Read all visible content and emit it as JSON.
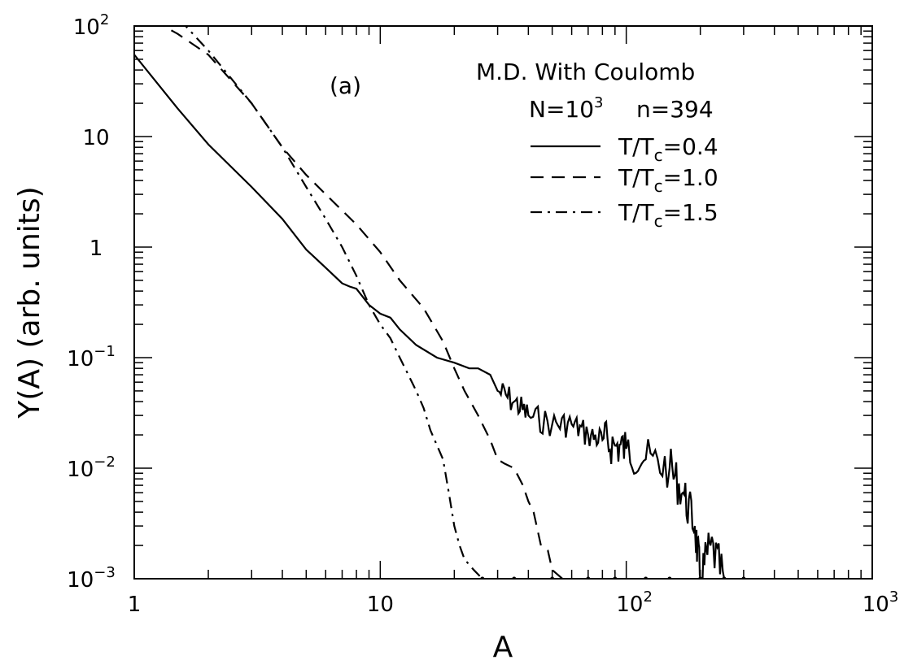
{
  "chart_data": {
    "type": "line",
    "panel_label": "(a)",
    "xlabel": "A",
    "ylabel": "Y(A) (arb. units)",
    "xscale": "log",
    "yscale": "log",
    "xlim": [
      1,
      1000
    ],
    "ylim": [
      0.001,
      100
    ],
    "x_ticks": [
      {
        "base": "1",
        "exp": ""
      },
      {
        "base": "10",
        "exp": ""
      },
      {
        "base": "10",
        "exp": "2"
      },
      {
        "base": "10",
        "exp": "3"
      }
    ],
    "y_ticks": [
      {
        "base": "10",
        "exp": "−3"
      },
      {
        "base": "10",
        "exp": "−2"
      },
      {
        "base": "10",
        "exp": "−1"
      },
      {
        "base": "1",
        "exp": ""
      },
      {
        "base": "10",
        "exp": ""
      },
      {
        "base": "10",
        "exp": "2"
      }
    ],
    "legend": {
      "placement": "top-right",
      "title": "M.D.  With Coulomb",
      "params_N": "N=10",
      "params_N_exp": "3",
      "params_n": "n=394",
      "entries": [
        {
          "prefix": "T/T",
          "sub": "c",
          "suffix": "=0.4",
          "style": "solid"
        },
        {
          "prefix": "T/T",
          "sub": "c",
          "suffix": "=1.0",
          "style": "dashed"
        },
        {
          "prefix": "T/T",
          "sub": "c",
          "suffix": "=1.5",
          "style": "dash-dot"
        }
      ]
    },
    "series": [
      {
        "style": "solid",
        "x": [
          1,
          1.5,
          2,
          3,
          4,
          5,
          6,
          7,
          7.5,
          8,
          9,
          10,
          11,
          12,
          14,
          17,
          20,
          23,
          25,
          28,
          30,
          35,
          40,
          50,
          60,
          70,
          80,
          90,
          100,
          120,
          150,
          170,
          190,
          200,
          220,
          250
        ],
        "y": [
          55,
          18,
          8.5,
          3.5,
          1.8,
          0.95,
          0.65,
          0.47,
          0.44,
          0.42,
          0.3,
          0.25,
          0.23,
          0.18,
          0.13,
          0.1,
          0.09,
          0.08,
          0.08,
          0.07,
          0.05,
          0.04,
          0.03,
          0.025,
          0.025,
          0.02,
          0.018,
          0.016,
          0.015,
          0.012,
          0.01,
          0.006,
          0.003,
          0.001,
          0.002,
          0.001
        ],
        "noise_from_x": 30
      },
      {
        "style": "dashed",
        "x": [
          1,
          1.5,
          2,
          3,
          4,
          5,
          6,
          8,
          10,
          12,
          15,
          18,
          20,
          22,
          25,
          28,
          30,
          32,
          35,
          38,
          40,
          42,
          45,
          48,
          50,
          55
        ],
        "y": [
          140,
          85,
          55,
          20,
          8,
          4.5,
          3,
          1.6,
          0.9,
          0.5,
          0.28,
          0.14,
          0.08,
          0.05,
          0.03,
          0.018,
          0.012,
          0.011,
          0.01,
          0.007,
          0.005,
          0.004,
          0.002,
          0.0018,
          0.0012,
          0.001
        ]
      },
      {
        "style": "dash-dot",
        "x": [
          1,
          1.5,
          2,
          3,
          4,
          5,
          6,
          7,
          8,
          9,
          10,
          11,
          12,
          13,
          14,
          15,
          16,
          18,
          19,
          20,
          21,
          22,
          24,
          26
        ],
        "y": [
          180,
          120,
          60,
          20,
          8,
          3.5,
          1.8,
          1.0,
          0.55,
          0.3,
          0.2,
          0.15,
          0.1,
          0.07,
          0.05,
          0.035,
          0.022,
          0.012,
          0.006,
          0.003,
          0.002,
          0.0015,
          0.0012,
          0.001
        ]
      }
    ],
    "floor_dots_x": [
      26,
      35,
      50,
      70,
      90,
      120,
      150,
      200,
      250,
      300
    ]
  }
}
